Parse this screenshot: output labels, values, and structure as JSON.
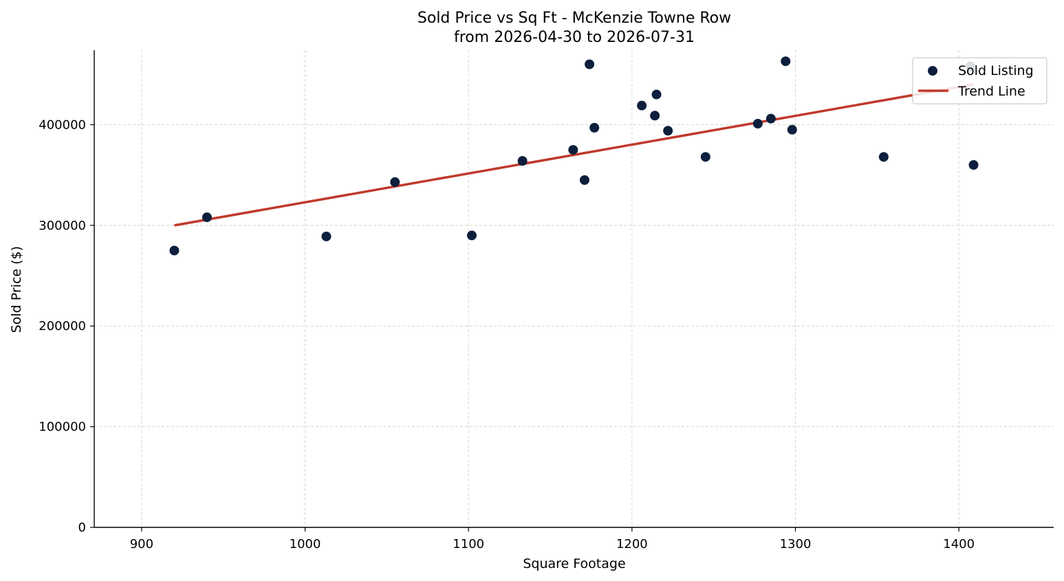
{
  "chart_data": {
    "type": "scatter",
    "title": "Sold Price vs Sq Ft - McKenzie Towne Row",
    "subtitle": "from 2026-04-30 to 2026-07-31",
    "xlabel": "Square Footage",
    "ylabel": "Sold Price ($)",
    "xlim": [
      871,
      1458
    ],
    "ylim": [
      0,
      474000
    ],
    "xticks": [
      900,
      1000,
      1100,
      1200,
      1300,
      1400
    ],
    "yticks": [
      0,
      100000,
      200000,
      300000,
      400000
    ],
    "xtick_labels": [
      "900",
      "1000",
      "1100",
      "1200",
      "1300",
      "1400"
    ],
    "ytick_labels": [
      "0",
      "100000",
      "200000",
      "300000",
      "400000"
    ],
    "grid": true,
    "legend_position": "top-right",
    "colors": {
      "points": "#0d1f3c",
      "trend": "#c0392b"
    },
    "series": [
      {
        "name": "Sold Listing",
        "kind": "scatter",
        "points": [
          [
            920,
            275000
          ],
          [
            940,
            308000
          ],
          [
            1013,
            289000
          ],
          [
            1055,
            343000
          ],
          [
            1102,
            290000
          ],
          [
            1133,
            364000
          ],
          [
            1164,
            375000
          ],
          [
            1171,
            345000
          ],
          [
            1174,
            460000
          ],
          [
            1177,
            397000
          ],
          [
            1206,
            419000
          ],
          [
            1214,
            409000
          ],
          [
            1215,
            430000
          ],
          [
            1222,
            394000
          ],
          [
            1245,
            368000
          ],
          [
            1277,
            401000
          ],
          [
            1285,
            406000
          ],
          [
            1294,
            463000
          ],
          [
            1298,
            395000
          ],
          [
            1354,
            368000
          ],
          [
            1407,
            458000
          ],
          [
            1409,
            360000
          ]
        ]
      },
      {
        "name": "Trend Line",
        "kind": "line",
        "points": [
          [
            920,
            300000
          ],
          [
            1409,
            440000
          ]
        ]
      }
    ]
  }
}
